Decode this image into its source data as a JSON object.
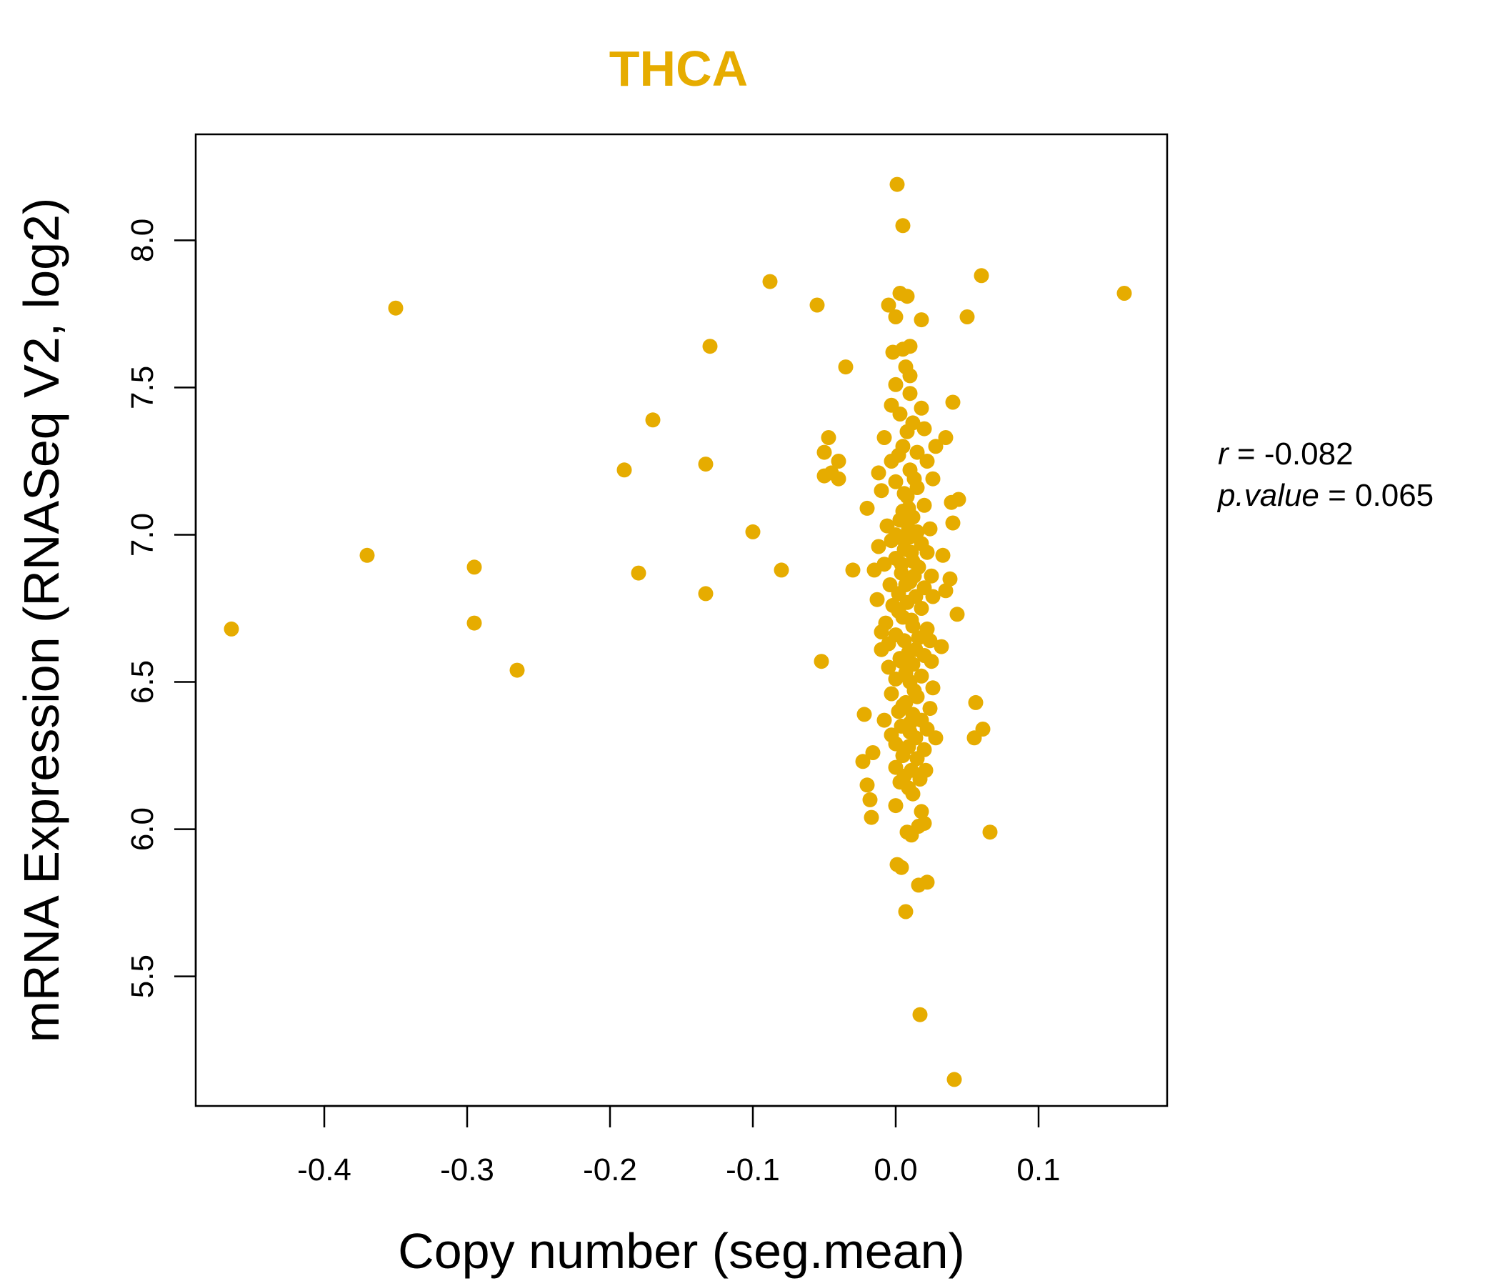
{
  "chart_data": {
    "type": "scatter",
    "title": "THCA",
    "xlabel": "Copy number (seg.mean)",
    "ylabel": "mRNA Expression (RNASeq V2, log2)",
    "xlim": [
      -0.49,
      0.19
    ],
    "ylim": [
      5.06,
      8.36
    ],
    "xticks": [
      -0.4,
      -0.3,
      -0.2,
      -0.1,
      0.0,
      0.1
    ],
    "xtick_labels": [
      "-0.4",
      "-0.3",
      "-0.2",
      "-0.1",
      "0.0",
      "0.1"
    ],
    "yticks": [
      5.5,
      6.0,
      6.5,
      7.0,
      7.5,
      8.0
    ],
    "ytick_labels": [
      "5.5",
      "6.0",
      "6.5",
      "7.0",
      "7.5",
      "8.0"
    ],
    "point_color": "#E6AC00",
    "title_color": "#E6AC00",
    "stats": {
      "r_label": "r",
      "r_value": "-0.082",
      "p_label": "p.value",
      "p_value": "0.065"
    },
    "points": [
      [
        -0.465,
        6.68
      ],
      [
        -0.37,
        6.93
      ],
      [
        -0.35,
        7.77
      ],
      [
        -0.295,
        6.89
      ],
      [
        -0.295,
        6.7
      ],
      [
        -0.265,
        6.54
      ],
      [
        -0.19,
        7.22
      ],
      [
        -0.17,
        7.39
      ],
      [
        -0.18,
        6.87
      ],
      [
        -0.13,
        7.64
      ],
      [
        -0.133,
        7.24
      ],
      [
        -0.133,
        6.8
      ],
      [
        -0.1,
        7.01
      ],
      [
        -0.088,
        7.86
      ],
      [
        -0.08,
        6.88
      ],
      [
        -0.055,
        7.78
      ],
      [
        -0.035,
        7.57
      ],
      [
        -0.052,
        6.57
      ],
      [
        -0.047,
        7.33
      ],
      [
        -0.05,
        7.28
      ],
      [
        -0.045,
        7.21
      ],
      [
        -0.04,
        7.25
      ],
      [
        -0.04,
        7.19
      ],
      [
        -0.05,
        7.2
      ],
      [
        -0.03,
        6.88
      ],
      [
        0.001,
        8.19
      ],
      [
        0.005,
        8.05
      ],
      [
        0.06,
        7.88
      ],
      [
        0.16,
        7.82
      ],
      [
        0.05,
        7.74
      ],
      [
        0.003,
        7.82
      ],
      [
        0.008,
        7.81
      ],
      [
        -0.005,
        7.78
      ],
      [
        0.0,
        7.74
      ],
      [
        0.018,
        7.73
      ],
      [
        0.01,
        7.64
      ],
      [
        0.005,
        7.63
      ],
      [
        -0.002,
        7.62
      ],
      [
        0.007,
        7.57
      ],
      [
        0.01,
        7.54
      ],
      [
        0.04,
        7.45
      ],
      [
        0.0,
        7.51
      ],
      [
        0.01,
        7.48
      ],
      [
        -0.003,
        7.44
      ],
      [
        0.018,
        7.43
      ],
      [
        0.003,
        7.41
      ],
      [
        0.012,
        7.38
      ],
      [
        0.02,
        7.36
      ],
      [
        0.035,
        7.33
      ],
      [
        0.028,
        7.3
      ],
      [
        -0.008,
        7.33
      ],
      [
        0.005,
        7.3
      ],
      [
        0.015,
        7.28
      ],
      [
        -0.003,
        7.25
      ],
      [
        0.022,
        7.25
      ],
      [
        0.01,
        7.22
      ],
      [
        -0.012,
        7.21
      ],
      [
        0.026,
        7.19
      ],
      [
        0.0,
        7.18
      ],
      [
        0.015,
        7.16
      ],
      [
        -0.01,
        7.15
      ],
      [
        0.008,
        7.13
      ],
      [
        0.044,
        7.12
      ],
      [
        0.039,
        7.11
      ],
      [
        0.02,
        7.1
      ],
      [
        -0.02,
        7.09
      ],
      [
        0.005,
        7.08
      ],
      [
        0.012,
        7.06
      ],
      [
        0.003,
        7.05
      ],
      [
        0.04,
        7.04
      ],
      [
        -0.006,
        7.03
      ],
      [
        0.024,
        7.02
      ],
      [
        0.015,
        7.01
      ],
      [
        0.0,
        7.0
      ],
      [
        0.009,
        6.99
      ],
      [
        -0.003,
        6.98
      ],
      [
        0.018,
        6.97
      ],
      [
        -0.012,
        6.96
      ],
      [
        0.006,
        6.95
      ],
      [
        0.022,
        6.94
      ],
      [
        0.033,
        6.93
      ],
      [
        0.0,
        6.92
      ],
      [
        0.012,
        6.91
      ],
      [
        -0.008,
        6.9
      ],
      [
        0.016,
        6.89
      ],
      [
        -0.015,
        6.88
      ],
      [
        0.004,
        6.87
      ],
      [
        0.025,
        6.86
      ],
      [
        0.038,
        6.85
      ],
      [
        0.01,
        6.84
      ],
      [
        -0.004,
        6.83
      ],
      [
        0.02,
        6.82
      ],
      [
        0.035,
        6.81
      ],
      [
        0.002,
        6.8
      ],
      [
        0.014,
        6.79
      ],
      [
        0.026,
        6.79
      ],
      [
        -0.013,
        6.78
      ],
      [
        0.008,
        6.77
      ],
      [
        -0.002,
        6.76
      ],
      [
        0.018,
        6.75
      ],
      [
        0.043,
        6.73
      ],
      [
        0.005,
        6.72
      ],
      [
        -0.007,
        6.7
      ],
      [
        0.012,
        6.69
      ],
      [
        0.022,
        6.68
      ],
      [
        -0.01,
        6.67
      ],
      [
        0.0,
        6.66
      ],
      [
        0.016,
        6.65
      ],
      [
        0.024,
        6.64
      ],
      [
        -0.005,
        6.63
      ],
      [
        0.032,
        6.62
      ],
      [
        -0.01,
        6.61
      ],
      [
        0.009,
        6.6
      ],
      [
        0.02,
        6.59
      ],
      [
        0.003,
        6.58
      ],
      [
        0.025,
        6.57
      ],
      [
        0.012,
        6.56
      ],
      [
        -0.005,
        6.55
      ],
      [
        0.007,
        6.53
      ],
      [
        0.018,
        6.52
      ],
      [
        0.0,
        6.51
      ],
      [
        0.01,
        6.5
      ],
      [
        0.026,
        6.48
      ],
      [
        -0.003,
        6.46
      ],
      [
        0.015,
        6.45
      ],
      [
        0.007,
        6.43
      ],
      [
        0.056,
        6.43
      ],
      [
        0.024,
        6.41
      ],
      [
        0.002,
        6.4
      ],
      [
        0.012,
        6.39
      ],
      [
        -0.022,
        6.39
      ],
      [
        0.018,
        6.37
      ],
      [
        -0.008,
        6.37
      ],
      [
        0.004,
        6.35
      ],
      [
        0.022,
        6.34
      ],
      [
        0.061,
        6.34
      ],
      [
        0.01,
        6.33
      ],
      [
        -0.003,
        6.32
      ],
      [
        0.014,
        6.31
      ],
      [
        0.028,
        6.31
      ],
      [
        0.055,
        6.31
      ],
      [
        0.0,
        6.29
      ],
      [
        0.009,
        6.28
      ],
      [
        0.02,
        6.27
      ],
      [
        -0.016,
        6.26
      ],
      [
        0.005,
        6.25
      ],
      [
        0.015,
        6.24
      ],
      [
        -0.023,
        6.23
      ],
      [
        0.0,
        6.21
      ],
      [
        0.011,
        6.2
      ],
      [
        0.021,
        6.2
      ],
      [
        0.006,
        6.18
      ],
      [
        0.017,
        6.17
      ],
      [
        0.003,
        6.16
      ],
      [
        -0.02,
        6.15
      ],
      [
        0.009,
        6.14
      ],
      [
        0.012,
        6.12
      ],
      [
        -0.018,
        6.1
      ],
      [
        0.0,
        6.08
      ],
      [
        0.018,
        6.06
      ],
      [
        -0.017,
        6.04
      ],
      [
        0.02,
        6.02
      ],
      [
        0.016,
        6.01
      ],
      [
        0.008,
        5.99
      ],
      [
        0.011,
        5.98
      ],
      [
        0.066,
        5.99
      ],
      [
        0.001,
        5.88
      ],
      [
        0.004,
        5.87
      ],
      [
        0.022,
        5.82
      ],
      [
        0.016,
        5.81
      ],
      [
        0.007,
        5.72
      ],
      [
        0.017,
        5.37
      ],
      [
        0.041,
        5.15
      ],
      [
        0.003,
        7.05
      ],
      [
        0.009,
        7.02
      ],
      [
        0.006,
        6.98
      ],
      [
        0.011,
        6.94
      ],
      [
        0.004,
        6.9
      ],
      [
        0.013,
        6.86
      ],
      [
        0.007,
        6.83
      ],
      [
        0.002,
        6.74
      ],
      [
        0.011,
        6.71
      ],
      [
        0.006,
        6.64
      ],
      [
        0.014,
        6.61
      ],
      [
        0.004,
        6.57
      ],
      [
        0.009,
        7.09
      ],
      [
        0.006,
        7.14
      ],
      [
        0.013,
        7.19
      ],
      [
        0.002,
        7.27
      ],
      [
        0.008,
        7.35
      ],
      [
        0.013,
        6.47
      ],
      [
        0.005,
        6.42
      ],
      [
        0.01,
        6.36
      ]
    ]
  }
}
